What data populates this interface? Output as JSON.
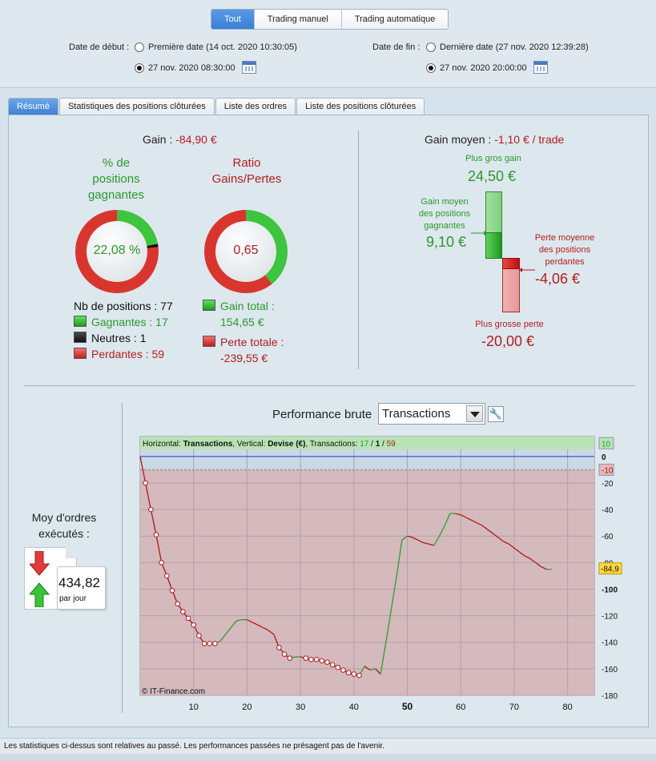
{
  "filters": {
    "buttons": [
      "Tout",
      "Trading manuel",
      "Trading automatique"
    ],
    "active": 0,
    "start_label": "Date de début :",
    "start_opt1": "Première date (14 oct. 2020 10:30:05)",
    "start_opt2": "27 nov. 2020 08:30:00",
    "end_label": "Date de fin :",
    "end_opt1": "Dernière date (27 nov. 2020 12:39:28)",
    "end_opt2": "27 nov. 2020 20:00:00"
  },
  "tabs": [
    "Résumé",
    "Statistiques des positions clôturées",
    "Liste des ordres",
    "Liste des positions clôturées"
  ],
  "summary": {
    "gain_label": "Gain :",
    "gain_value": "-84,90 €",
    "pct_title_1": "% de",
    "pct_title_2": "positions",
    "pct_title_3": "gagnantes",
    "pct_value": "22,08 %",
    "pct_fraction": 0.2208,
    "ratio_title_1": "Ratio",
    "ratio_title_2": "Gains/Pertes",
    "ratio_value": "0,65",
    "ratio_fraction": 0.3923,
    "nb_positions": "Nb de positions : 77",
    "gagnantes": "Gagnantes : 17",
    "neutres": "Neutres : 1",
    "perdantes": "Perdantes : 59",
    "gain_total_1": "Gain total :",
    "gain_total_2": "154,65 €",
    "perte_totale_1": "Perte totale :",
    "perte_totale_2": "-239,55 €",
    "gain_moyen_label": "Gain moyen :",
    "gain_moyen_value": "-1,10 € / trade",
    "plus_gros_gain_label": "Plus gros gain",
    "plus_gros_gain": "24,50 €",
    "gain_moyen_pos_1": "Gain moyen",
    "gain_moyen_pos_2": "des positions",
    "gain_moyen_pos_3": "gagnantes",
    "gain_moyen_pos": "9,10 €",
    "perte_moyenne_1": "Perte moyenne",
    "perte_moyenne_2": "des positions",
    "perte_moyenne_3": "perdantes",
    "perte_moyenne": "-4,06 €",
    "plus_grosse_perte_label": "Plus grosse perte",
    "plus_grosse_perte": "-20,00 €"
  },
  "performance": {
    "title": "Performance brute",
    "select_value": "Transactions",
    "moy_1": "Moy d'ordres",
    "moy_2": "exécutés :",
    "ordres_value": "434,82",
    "ordres_unit": "par jour",
    "legend_h": "Horizontal: ",
    "legend_h_val": "Transactions",
    "legend_v": ", Vertical: ",
    "legend_v_val": "Devise (€)",
    "legend_t": ", Transactions: ",
    "legend_win": "17",
    "legend_sep1": " / ",
    "legend_neu": "1",
    "legend_sep2": " / ",
    "legend_los": "59",
    "copyright": "© IT-Finance.com",
    "current_label": "-84,9"
  },
  "chart_data": {
    "type": "line",
    "xlabel": "",
    "ylabel": "",
    "xlim": [
      0,
      85
    ],
    "ylim": [
      -180,
      15
    ],
    "x_ticks": [
      10,
      20,
      30,
      40,
      50,
      60,
      70,
      80
    ],
    "x_ticks_bold": [
      50
    ],
    "y_ticks": [
      10,
      0,
      -10,
      -20,
      -40,
      -60,
      -80,
      -100,
      -120,
      -140,
      -160,
      -180
    ],
    "y_ticks_bold": [
      0,
      -100
    ],
    "colors": {
      "gain": "#2e9e2e",
      "loss": "#b01818",
      "zero": "#2233cc"
    },
    "x": [
      0,
      1,
      2,
      3,
      4,
      5,
      6,
      7,
      8,
      9,
      10,
      11,
      12,
      13,
      14,
      15,
      16,
      17,
      18,
      19,
      20,
      21,
      22,
      23,
      24,
      25,
      26,
      27,
      28,
      29,
      30,
      31,
      32,
      33,
      34,
      35,
      36,
      37,
      38,
      39,
      40,
      41,
      42,
      43,
      44,
      45,
      46,
      47,
      48,
      49,
      50,
      51,
      52,
      53,
      54,
      55,
      56,
      57,
      58,
      59,
      60,
      61,
      62,
      63,
      64,
      65,
      66,
      67,
      68,
      69,
      70,
      71,
      72,
      73,
      74,
      75,
      76,
      77
    ],
    "y": [
      0,
      -20,
      -40,
      -59,
      -80,
      -90,
      -101,
      -111,
      -117,
      -122,
      -127,
      -135,
      -141,
      -141,
      -141,
      -139,
      -134,
      -129,
      -124,
      -123,
      -123,
      -125,
      -127,
      -129,
      -131,
      -134,
      -144,
      -149,
      -152,
      -151,
      -151,
      -152,
      -153,
      -153,
      -154,
      -155,
      -157,
      -159,
      -161,
      -163,
      -164,
      -165,
      -158,
      -161,
      -160,
      -164,
      -140,
      -115,
      -90,
      -63,
      -60,
      -61,
      -63,
      -65,
      -66,
      -67,
      -60,
      -52,
      -43,
      -43,
      -44,
      -46,
      -48,
      -50,
      -52,
      -55,
      -58,
      -61,
      -64,
      -66,
      -69,
      -72,
      -75,
      -77,
      -80,
      -83,
      -85,
      -85
    ]
  }
}
